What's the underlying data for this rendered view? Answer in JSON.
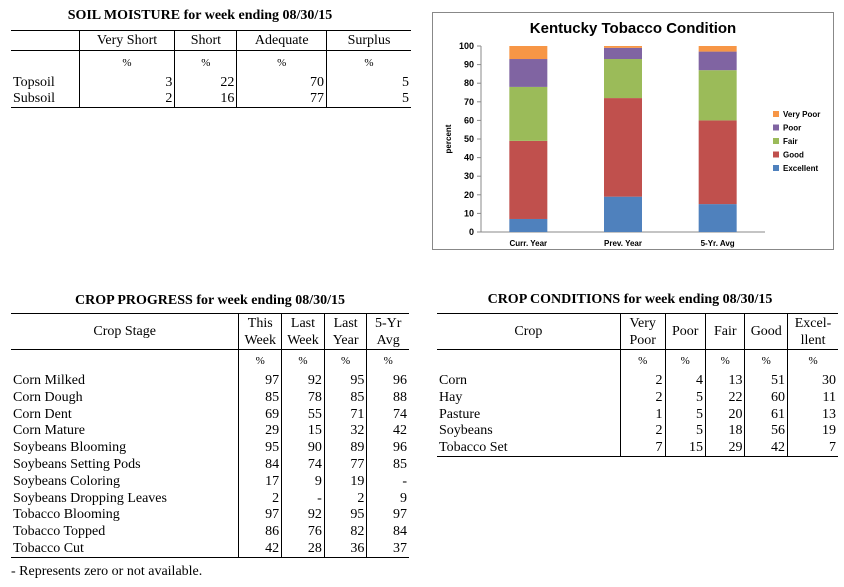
{
  "soil": {
    "title": "SOIL MOISTURE for week ending 08/30/15",
    "headers": [
      "Very Short",
      "Short",
      "Adequate",
      "Surplus"
    ],
    "units": [
      "%",
      "%",
      "%",
      "%"
    ],
    "rows": [
      {
        "label": "Topsoil",
        "values": [
          "3",
          "22",
          "70",
          "5"
        ]
      },
      {
        "label": "Subsoil",
        "values": [
          "2",
          "16",
          "77",
          "5"
        ]
      }
    ]
  },
  "progress": {
    "title": "CROP PROGRESS for week ending 08/30/15",
    "stage_header": "Crop Stage",
    "headers": [
      [
        "This",
        "Week"
      ],
      [
        "Last",
        "Week"
      ],
      [
        "Last",
        "Year"
      ],
      [
        "5-Yr",
        "Avg"
      ]
    ],
    "units": [
      "%",
      "%",
      "%",
      "%"
    ],
    "rows": [
      {
        "label": "Corn Milked",
        "values": [
          "97",
          "92",
          "95",
          "96"
        ]
      },
      {
        "label": "Corn Dough",
        "values": [
          "85",
          "78",
          "85",
          "88"
        ]
      },
      {
        "label": "Corn Dent",
        "values": [
          "69",
          "55",
          "71",
          "74"
        ]
      },
      {
        "label": "Corn Mature",
        "values": [
          "29",
          "15",
          "32",
          "42"
        ]
      },
      {
        "label": "Soybeans Blooming",
        "values": [
          "95",
          "90",
          "89",
          "96"
        ]
      },
      {
        "label": "Soybeans Setting Pods",
        "values": [
          "84",
          "74",
          "77",
          "85"
        ]
      },
      {
        "label": "Soybeans Coloring",
        "values": [
          "17",
          "9",
          "19",
          "-"
        ]
      },
      {
        "label": "Soybeans Dropping Leaves",
        "values": [
          "2",
          "-",
          "2",
          "9"
        ]
      },
      {
        "label": "Tobacco Blooming",
        "values": [
          "97",
          "92",
          "95",
          "97"
        ]
      },
      {
        "label": "Tobacco Topped",
        "values": [
          "86",
          "76",
          "82",
          "84"
        ]
      },
      {
        "label": "Tobacco Cut",
        "values": [
          "42",
          "28",
          "36",
          "37"
        ]
      }
    ],
    "footnote": "- Represents zero or not available."
  },
  "conditions": {
    "title": "CROP CONDITIONS for week ending 08/30/15",
    "crop_header": "Crop",
    "headers": [
      [
        "Very",
        "Poor"
      ],
      [
        "Poor",
        ""
      ],
      [
        "Fair",
        ""
      ],
      [
        "Good",
        ""
      ],
      [
        "Excel-",
        "llent"
      ]
    ],
    "units": [
      "%",
      "%",
      "%",
      "%",
      "%"
    ],
    "rows": [
      {
        "label": "Corn",
        "values": [
          "2",
          "4",
          "13",
          "51",
          "30"
        ]
      },
      {
        "label": "Hay",
        "values": [
          "2",
          "5",
          "22",
          "60",
          "11"
        ]
      },
      {
        "label": "Pasture",
        "values": [
          "1",
          "5",
          "20",
          "61",
          "13"
        ]
      },
      {
        "label": "Soybeans",
        "values": [
          "2",
          "5",
          "18",
          "56",
          "19"
        ]
      },
      {
        "label": "Tobacco Set",
        "values": [
          "7",
          "15",
          "29",
          "42",
          "7"
        ]
      }
    ]
  },
  "chart_data": {
    "type": "bar",
    "stacked": true,
    "title": "Kentucky Tobacco Condition",
    "ylabel": "percent",
    "xlabel": "",
    "ylim": [
      0,
      100
    ],
    "yticks": [
      0,
      10,
      20,
      30,
      40,
      50,
      60,
      70,
      80,
      90,
      100
    ],
    "categories": [
      "Curr. Year",
      "Prev. Year",
      "5-Yr. Avg"
    ],
    "series": [
      {
        "name": "Excellent",
        "color": "#4f81bd",
        "values": [
          7,
          19,
          15
        ]
      },
      {
        "name": "Good",
        "color": "#c0504d",
        "values": [
          42,
          53,
          45
        ]
      },
      {
        "name": "Fair",
        "color": "#9bbb59",
        "values": [
          29,
          21,
          27
        ]
      },
      {
        "name": "Poor",
        "color": "#8064a2",
        "values": [
          15,
          6,
          10
        ]
      },
      {
        "name": "Very Poor",
        "color": "#f79646",
        "values": [
          7,
          1,
          3
        ]
      }
    ],
    "legend": "right",
    "grid": false
  }
}
